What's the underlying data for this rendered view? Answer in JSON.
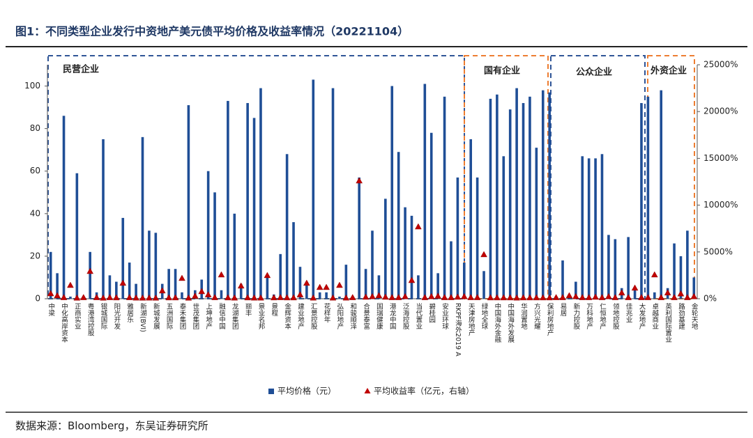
{
  "chart_data": {
    "type": "bar-line",
    "title": "图1：不同类型企业发行中资地产美元债平均价格及收益率情况（20221104）",
    "source": "数据来源：Bloomberg，东吴证券研究所",
    "annotations": [
      "民营企业",
      "国有企业",
      "公众企业",
      "外资企业"
    ],
    "categories": [
      "中梁",
      null,
      "中化高岸资本",
      null,
      "正商实业",
      null,
      "粤港湾控股",
      null,
      "银城国际",
      null,
      "阳光开发",
      null,
      "雅居乐",
      null,
      "新湖(BVI)",
      null,
      "新城发展",
      null,
      "五洲国际",
      null,
      "泰禾集团",
      null,
      "世茂集团",
      null,
      "上坤地产",
      null,
      "融信中国",
      null,
      "龙湖集团",
      null,
      "丽丰",
      null,
      "景业名邦",
      null,
      "景程",
      null,
      "金辉资本",
      null,
      "建业地产",
      null,
      "汇景控股",
      null,
      "花样年",
      null,
      "弘阳地产",
      null,
      "和骏顺泽",
      null,
      "合景泰富",
      null,
      "国瑞健康",
      null,
      "港龙中国",
      null,
      "泛海控股",
      null,
      "当代置业",
      null,
      "碧桂园",
      null,
      "安业环球",
      null,
      "RKPF海外2019 A",
      null,
      "天津房地产",
      null,
      "绿地全球",
      null,
      "中国海外金融",
      null,
      "中国海外发展",
      null,
      "华润置地",
      null,
      "方兴光耀",
      null,
      "保利房地产",
      null,
      "易居",
      null,
      "新力控股",
      null,
      "万科地产",
      null,
      "仁恒地产",
      null,
      "领地控股",
      null,
      "佳兆业",
      null,
      "大发地产",
      null,
      "卓越商业",
      null,
      "英利国际置业",
      null,
      "路劲基建",
      null,
      "金轮天地"
    ],
    "series": [
      {
        "name": "平均价格（元）",
        "color": "#1f4e96",
        "values": [
          22,
          12,
          86,
          1,
          59,
          1,
          22,
          3,
          75,
          11,
          8,
          38,
          17,
          7,
          76,
          32,
          31,
          7,
          14,
          14,
          3,
          91,
          4,
          9,
          60,
          50,
          4,
          93,
          40,
          7,
          92,
          85,
          99,
          10,
          2,
          21,
          68,
          36,
          15,
          8,
          103,
          3,
          3,
          99,
          1,
          16,
          1,
          57,
          14,
          32,
          11,
          47,
          100,
          69,
          43,
          39,
          11,
          101,
          78,
          12,
          95,
          27,
          57,
          17,
          75,
          57,
          13,
          94,
          96,
          67,
          89,
          99,
          92,
          95,
          71,
          98,
          97,
          1,
          18,
          2,
          8,
          67,
          66,
          66,
          68,
          30,
          28,
          5,
          29,
          5,
          92,
          95,
          3,
          98,
          5,
          26,
          20,
          32,
          10
        ]
      },
      {
        "name": "平均收益率（亿元，右轴）",
        "color": "#c00000",
        "axis": "y2",
        "marker": "triangle",
        "values": [
          520,
          300,
          100,
          1410,
          50,
          100,
          2900,
          100,
          50,
          100,
          80,
          1640,
          100,
          60,
          50,
          60,
          50,
          820,
          80,
          80,
          2160,
          50,
          250,
          740,
          400,
          100,
          2530,
          80,
          60,
          1340,
          80,
          60,
          60,
          2460,
          80,
          100,
          80,
          80,
          400,
          1640,
          60,
          1190,
          1190,
          60,
          1410,
          60,
          100,
          12570,
          150,
          200,
          300,
          150,
          100,
          100,
          200,
          1930,
          7660,
          100,
          200,
          250,
          100,
          100,
          150,
          200,
          100,
          100,
          4690,
          80,
          80,
          80,
          80,
          60,
          80,
          80,
          80,
          80,
          80,
          100,
          100,
          300,
          200,
          100,
          100,
          150,
          100,
          200,
          100,
          600,
          100,
          1120,
          100,
          100,
          2530,
          100,
          600,
          100,
          500,
          100,
          200
        ]
      }
    ],
    "ylim": [
      0,
      110
    ],
    "yticks": [
      0,
      20,
      40,
      60,
      80,
      100
    ],
    "y2lim": [
      0,
      25000
    ],
    "y2ticks": [
      {
        "value": 0,
        "label": "0%"
      },
      {
        "value": 5000,
        "label": "5000%"
      },
      {
        "value": 10000,
        "label": "10000%"
      },
      {
        "value": 15000,
        "label": "15000%"
      },
      {
        "value": 20000,
        "label": "20000%"
      },
      {
        "value": 25000,
        "label": "25000%"
      }
    ],
    "grid": false,
    "legend": "bottom"
  }
}
